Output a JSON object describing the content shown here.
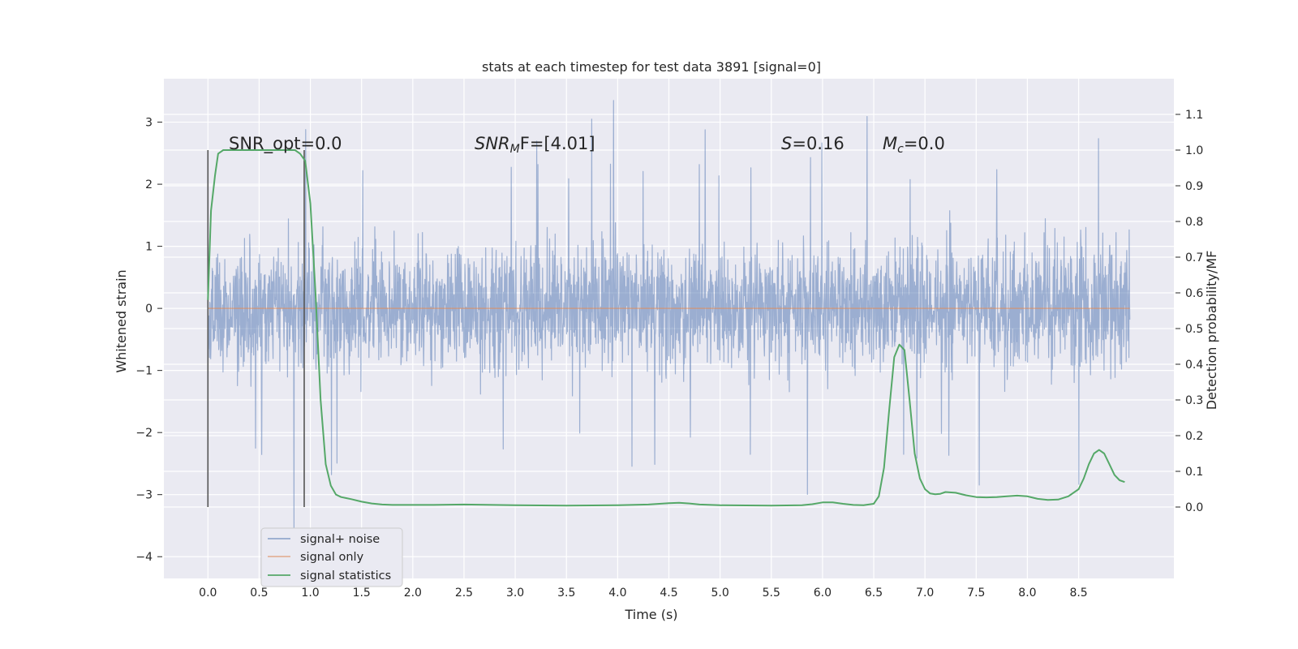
{
  "chart_data": {
    "type": "line",
    "title": "stats at each timestep for test data 3891 [signal=0]",
    "xlabel": "Time (s)",
    "ylabel_left": "Whitened strain",
    "ylabel_right": "Detection probability/MF",
    "xlim": [
      -0.43,
      9.43
    ],
    "ylim_left": [
      -4.35,
      3.7
    ],
    "ylim_right": [
      -0.2,
      1.2
    ],
    "x_ticks": [
      "0.0",
      "0.5",
      "1.0",
      "1.5",
      "2.0",
      "2.5",
      "3.0",
      "3.5",
      "4.0",
      "4.5",
      "5.0",
      "5.5",
      "6.0",
      "6.5",
      "7.0",
      "7.5",
      "8.0",
      "8.5"
    ],
    "y_ticks_left": [
      "−4",
      "−3",
      "−2",
      "−1",
      "0",
      "1",
      "2",
      "3"
    ],
    "y_ticks_right": [
      "0.0",
      "0.1",
      "0.2",
      "0.3",
      "0.4",
      "0.5",
      "0.6",
      "0.7",
      "0.8",
      "0.9",
      "1.0",
      "1.1"
    ],
    "grid": true,
    "legend_position": "lower-left",
    "colors": {
      "background": "#eaeaf2",
      "grid": "#ffffff",
      "signal_noise": "#4c72b0",
      "signal_only": "#dd8452",
      "signal_statistics": "#55a868",
      "window_lines": "#555555"
    },
    "annotations": {
      "snr_opt": "SNR_opt=0.0",
      "snr_mf_prefix": "SNR",
      "snr_mf_sub": "M",
      "snr_mf_suffix": "F=[4.01]",
      "s_prefix": "S",
      "s_value": "=0.16",
      "mc_prefix": "M",
      "mc_sub": "c",
      "mc_value": "=0.0"
    },
    "window_lines_x": [
      0.0,
      0.94
    ],
    "window_lines_y": [
      -3.2,
      2.55
    ],
    "series": [
      {
        "name": "signal+ noise",
        "axis": "left",
        "x_range": [
          0.0,
          9.0
        ],
        "amplitude_typical": 0.8,
        "envelope_upper_approx": 1.4,
        "envelope_lower_approx": -1.4,
        "max_value": 3.35,
        "min_value": -3.65
      },
      {
        "name": "signal only",
        "axis": "left",
        "x": [
          0.0,
          9.0
        ],
        "y": [
          0.0,
          0.0
        ]
      },
      {
        "name": "signal statistics",
        "axis": "right",
        "x": [
          0.0,
          0.03,
          0.07,
          0.1,
          0.15,
          0.2,
          0.3,
          0.4,
          0.5,
          0.6,
          0.7,
          0.75,
          0.8,
          0.85,
          0.9,
          0.95,
          1.0,
          1.05,
          1.1,
          1.15,
          1.2,
          1.25,
          1.3,
          1.35,
          1.4,
          1.5,
          1.6,
          1.7,
          1.8,
          2.0,
          2.2,
          2.5,
          3.0,
          3.5,
          4.0,
          4.3,
          4.5,
          4.6,
          4.7,
          4.8,
          5.0,
          5.5,
          5.8,
          5.9,
          6.0,
          6.1,
          6.2,
          6.3,
          6.4,
          6.5,
          6.55,
          6.6,
          6.65,
          6.7,
          6.75,
          6.8,
          6.85,
          6.9,
          6.95,
          7.0,
          7.05,
          7.1,
          7.15,
          7.2,
          7.3,
          7.4,
          7.5,
          7.6,
          7.7,
          7.8,
          7.9,
          8.0,
          8.1,
          8.2,
          8.3,
          8.4,
          8.5,
          8.55,
          8.6,
          8.65,
          8.7,
          8.75,
          8.8,
          8.85,
          8.9,
          8.95
        ],
        "y": [
          0.58,
          0.83,
          0.93,
          0.99,
          1.0,
          1.0,
          1.0,
          1.0,
          1.0,
          1.0,
          1.0,
          1.0,
          1.0,
          1.0,
          0.99,
          0.97,
          0.85,
          0.6,
          0.3,
          0.12,
          0.06,
          0.035,
          0.028,
          0.025,
          0.022,
          0.015,
          0.01,
          0.007,
          0.006,
          0.006,
          0.006,
          0.007,
          0.005,
          0.004,
          0.005,
          0.007,
          0.011,
          0.012,
          0.01,
          0.007,
          0.005,
          0.004,
          0.005,
          0.008,
          0.013,
          0.013,
          0.009,
          0.006,
          0.005,
          0.009,
          0.03,
          0.11,
          0.27,
          0.42,
          0.455,
          0.44,
          0.3,
          0.15,
          0.08,
          0.05,
          0.038,
          0.036,
          0.037,
          0.042,
          0.04,
          0.033,
          0.028,
          0.027,
          0.028,
          0.03,
          0.032,
          0.03,
          0.023,
          0.02,
          0.021,
          0.03,
          0.05,
          0.08,
          0.12,
          0.15,
          0.16,
          0.15,
          0.12,
          0.09,
          0.075,
          0.07
        ]
      }
    ]
  }
}
